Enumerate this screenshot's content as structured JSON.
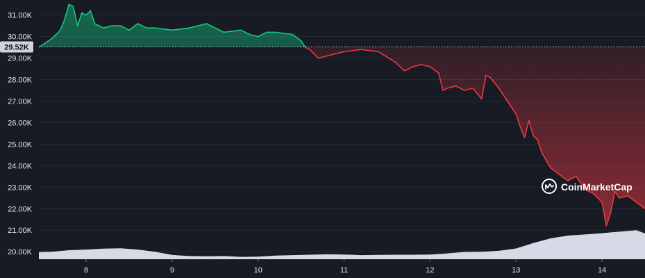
{
  "chart_data": {
    "type": "area",
    "watermark": "CoinMarketCap",
    "reference_label": "29.52K",
    "reference_value": 29.52,
    "xlim": [
      7.45,
      14.5
    ],
    "ylim": [
      19.65,
      31.7
    ],
    "grid": "horizontal",
    "y_ticks": [
      {
        "value": 31,
        "label": "31.00K"
      },
      {
        "value": 30,
        "label": "30.00K"
      },
      {
        "value": 29,
        "label": "29.00K"
      },
      {
        "value": 28,
        "label": "28.00K"
      },
      {
        "value": 27,
        "label": "27.00K"
      },
      {
        "value": 26,
        "label": "26.00K"
      },
      {
        "value": 25,
        "label": "25.00K"
      },
      {
        "value": 24,
        "label": "24.00K"
      },
      {
        "value": 23,
        "label": "23.00K"
      },
      {
        "value": 22,
        "label": "22.00K"
      },
      {
        "value": 21,
        "label": "21.00K"
      },
      {
        "value": 20,
        "label": "20.00K"
      }
    ],
    "x_ticks": [
      {
        "value": 8,
        "label": "8"
      },
      {
        "value": 9,
        "label": "9"
      },
      {
        "value": 10,
        "label": "10"
      },
      {
        "value": 11,
        "label": "11"
      },
      {
        "value": 12,
        "label": "12"
      },
      {
        "value": 13,
        "label": "13"
      },
      {
        "value": 14,
        "label": "14"
      }
    ],
    "price": {
      "x": [
        7.45,
        7.6,
        7.7,
        7.75,
        7.8,
        7.85,
        7.9,
        7.95,
        8.0,
        8.05,
        8.1,
        8.2,
        8.3,
        8.4,
        8.5,
        8.6,
        8.7,
        8.8,
        9.0,
        9.2,
        9.4,
        9.5,
        9.6,
        9.8,
        9.9,
        10.0,
        10.1,
        10.2,
        10.4,
        10.5,
        10.55,
        10.6,
        10.7,
        10.9,
        11.0,
        11.2,
        11.4,
        11.6,
        11.7,
        11.8,
        11.9,
        12.0,
        12.1,
        12.15,
        12.2,
        12.3,
        12.4,
        12.5,
        12.6,
        12.65,
        12.7,
        12.8,
        12.9,
        13.0,
        13.05,
        13.1,
        13.15,
        13.2,
        13.25,
        13.3,
        13.4,
        13.5,
        13.6,
        13.7,
        13.8,
        13.9,
        14.0,
        14.05,
        14.1,
        14.15,
        14.2,
        14.3,
        14.4,
        14.5
      ],
      "y": [
        29.5,
        29.9,
        30.3,
        30.8,
        31.5,
        31.4,
        30.5,
        31.1,
        31.0,
        31.2,
        30.6,
        30.4,
        30.5,
        30.5,
        30.3,
        30.6,
        30.4,
        30.4,
        30.3,
        30.4,
        30.6,
        30.4,
        30.2,
        30.3,
        30.1,
        30.0,
        30.2,
        30.2,
        30.1,
        29.8,
        29.5,
        29.4,
        29.0,
        29.2,
        29.3,
        29.4,
        29.3,
        28.8,
        28.4,
        28.6,
        28.7,
        28.6,
        28.3,
        27.5,
        27.6,
        27.7,
        27.5,
        27.6,
        27.1,
        28.2,
        28.1,
        27.6,
        27.0,
        26.4,
        25.8,
        25.3,
        26.1,
        25.4,
        25.2,
        24.6,
        23.9,
        23.6,
        23.3,
        23.5,
        22.9,
        22.7,
        22.3,
        21.2,
        21.8,
        22.8,
        22.5,
        22.6,
        22.3,
        22.0
      ]
    },
    "volume": {
      "x": [
        7.45,
        7.6,
        7.8,
        8.0,
        8.2,
        8.4,
        8.6,
        8.8,
        9.0,
        9.2,
        9.4,
        9.6,
        9.8,
        10.0,
        10.2,
        10.4,
        10.6,
        10.8,
        11.0,
        11.2,
        11.4,
        11.6,
        11.8,
        12.0,
        12.2,
        12.4,
        12.6,
        12.8,
        13.0,
        13.2,
        13.4,
        13.6,
        13.8,
        14.0,
        14.2,
        14.4,
        14.5
      ],
      "y": [
        19.98,
        20.0,
        20.07,
        20.1,
        20.14,
        20.16,
        20.1,
        20.0,
        19.85,
        19.8,
        19.79,
        19.8,
        19.76,
        19.77,
        19.82,
        19.84,
        19.86,
        19.88,
        19.87,
        19.84,
        19.85,
        19.86,
        19.86,
        19.87,
        19.92,
        19.99,
        20.0,
        20.04,
        20.15,
        20.4,
        20.62,
        20.75,
        20.8,
        20.86,
        20.93,
        21.0,
        20.85
      ]
    }
  }
}
